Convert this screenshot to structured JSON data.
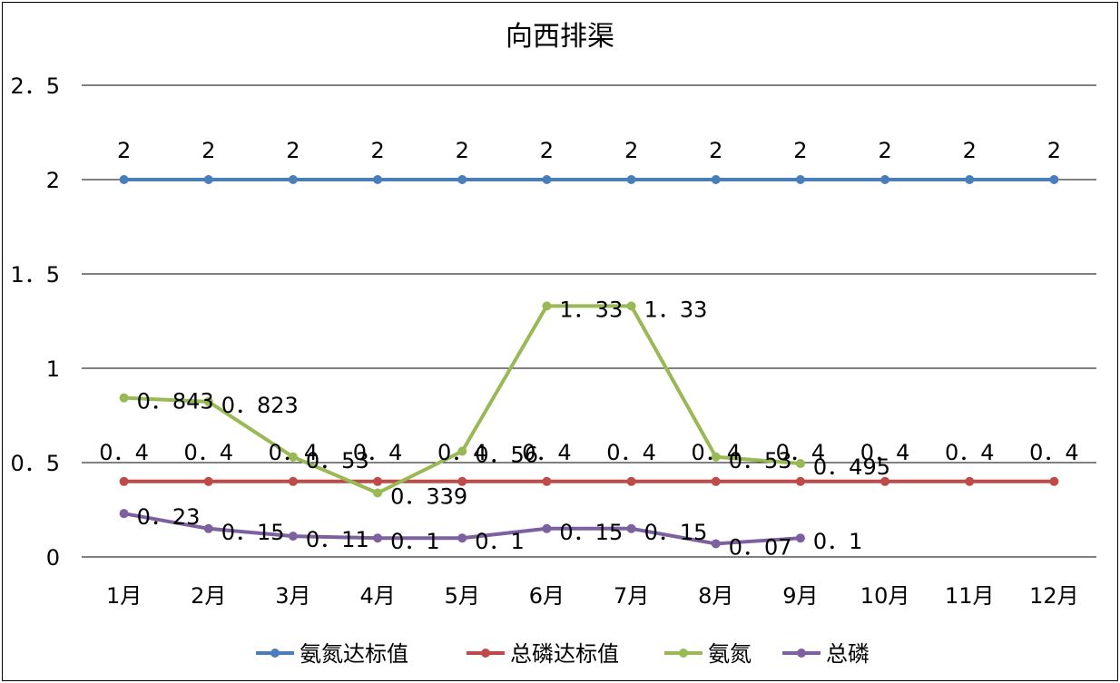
{
  "chart_data": {
    "type": "line",
    "title": "向西排渠",
    "xlabel": "",
    "ylabel": "",
    "categories": [
      "1月",
      "2月",
      "3月",
      "4月",
      "5月",
      "6月",
      "7月",
      "8月",
      "9月",
      "10月",
      "11月",
      "12月"
    ],
    "ylim": [
      0,
      2.5
    ],
    "yticks": [
      0,
      0.5,
      1,
      1.5,
      2,
      2.5
    ],
    "ytick_labels": [
      "0",
      "0．5",
      "1",
      "1．5",
      "2",
      "2．5"
    ],
    "grid": "horizontal",
    "legend_position": "bottom",
    "series": [
      {
        "name": "氨氮达标值",
        "color": "#4a7ebb",
        "values": [
          2,
          2,
          2,
          2,
          2,
          2,
          2,
          2,
          2,
          2,
          2,
          2
        ],
        "labels": [
          "2",
          "2",
          "2",
          "2",
          "2",
          "2",
          "2",
          "2",
          "2",
          "2",
          "2",
          "2"
        ]
      },
      {
        "name": "总磷达标值",
        "color": "#be4b48",
        "values": [
          0.4,
          0.4,
          0.4,
          0.4,
          0.4,
          0.4,
          0.4,
          0.4,
          0.4,
          0.4,
          0.4,
          0.4
        ],
        "labels": [
          "0．4",
          "0．4",
          "0．4",
          "0．4",
          "0．4",
          "0．4",
          "0．4",
          "0．4",
          "0．4",
          "0．4",
          "0．4",
          "0．4"
        ]
      },
      {
        "name": "氨氮",
        "color": "#98b954",
        "values": [
          0.843,
          0.823,
          0.53,
          0.339,
          0.56,
          1.33,
          1.33,
          0.53,
          0.495,
          null,
          null,
          null
        ],
        "labels": [
          "0．843",
          "0．823",
          "0．53",
          "0．339",
          "0．56",
          "1．33",
          "1．33",
          "0．53",
          "0．495",
          null,
          null,
          null
        ]
      },
      {
        "name": "总磷",
        "color": "#7d60a0",
        "values": [
          0.23,
          0.15,
          0.11,
          0.1,
          0.1,
          0.15,
          0.15,
          0.07,
          0.1,
          null,
          null,
          null
        ],
        "labels": [
          "0．23",
          "0．15",
          "0．11",
          "0．1",
          "0．1",
          "0．15",
          "0．15",
          "0．07",
          "0．1",
          null,
          null,
          null
        ]
      }
    ]
  }
}
